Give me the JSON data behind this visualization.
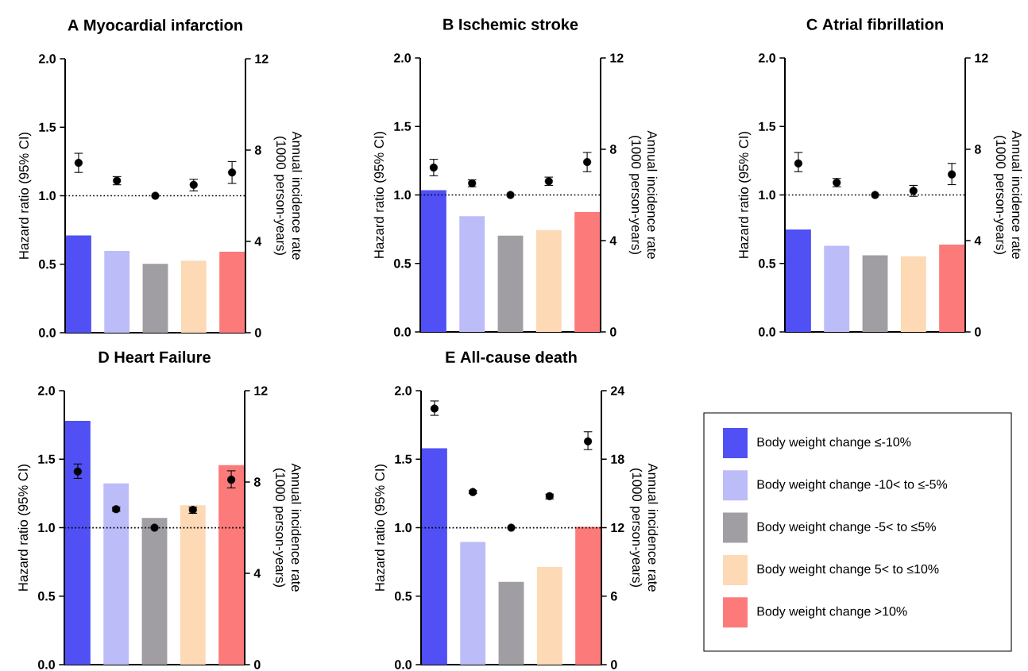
{
  "chart_data": [
    {
      "type": "bar",
      "marker": "circle",
      "title": "A Myocardial infarction",
      "ylabel": "Hazard ratio (95% CI)",
      "y2label": "Annual incidence rate (1000 person-years)",
      "categories": [
        null,
        null,
        null,
        null,
        null
      ],
      "ylim": [
        0,
        2
      ],
      "yticks": [
        {
          "value": 0,
          "label": "0.0"
        },
        {
          "value": 0.5,
          "label": "0.5"
        },
        {
          "value": 1,
          "label": "1.0"
        },
        {
          "value": 1.5,
          "label": "1.5"
        },
        {
          "value": 2,
          "label": "2.0"
        }
      ],
      "y2lim": [
        0,
        12
      ],
      "y2ticks": [
        0,
        4,
        8,
        12
      ],
      "ref_lines": [
        {
          "axis": "y",
          "value": 1,
          "line_style": "dotted"
        }
      ],
      "series": [
        {
          "type": "bar",
          "axis": "y2",
          "colors": [
            "#5050f5",
            "#bcbcf8",
            "#a19ea3",
            "#fdd9b5",
            "#fd7a7a"
          ],
          "values": [
            4.26,
            3.58,
            3.02,
            3.16,
            3.55
          ]
        },
        {
          "type": "scatter",
          "color": "#000000",
          "values": [
            1.24,
            1.11,
            1.0,
            1.08,
            1.17
          ],
          "errors": [
            [
              1.17,
              1.31
            ],
            [
              1.08,
              1.14
            ],
            null,
            [
              1.035,
              1.12
            ],
            [
              1.09,
              1.25
            ]
          ]
        }
      ]
    },
    {
      "type": "bar",
      "marker": "circle",
      "title": "B Ischemic stroke",
      "ylabel": "Hazard ratio (95% CI)",
      "y2label": "Annual incidence rate (1000 person-years)",
      "categories": [
        null,
        null,
        null,
        null,
        null
      ],
      "ylim": [
        0,
        2
      ],
      "yticks": [
        {
          "value": 0,
          "label": "0.0"
        },
        {
          "value": 0.5,
          "label": "0.5"
        },
        {
          "value": 1,
          "label": "1.0"
        },
        {
          "value": 1.5,
          "label": "1.5"
        },
        {
          "value": 2,
          "label": "2.0"
        }
      ],
      "y2lim": [
        0,
        12
      ],
      "y2ticks": [
        0,
        4,
        8,
        12
      ],
      "ref_lines": [
        {
          "axis": "y",
          "value": 1,
          "line_style": "dotted"
        }
      ],
      "series": [
        {
          "type": "bar",
          "axis": "y2",
          "colors": [
            "#5050f5",
            "#bcbcf8",
            "#a19ea3",
            "#fdd9b5",
            "#fd7a7a"
          ],
          "values": [
            6.21,
            5.07,
            4.22,
            4.46,
            5.25
          ]
        },
        {
          "type": "scatter",
          "color": "#000000",
          "values": [
            1.2,
            1.085,
            1.0,
            1.1,
            1.24
          ],
          "errors": [
            [
              1.14,
              1.26
            ],
            [
              1.06,
              1.11
            ],
            null,
            [
              1.07,
              1.13
            ],
            [
              1.17,
              1.31
            ]
          ]
        }
      ]
    },
    {
      "type": "bar",
      "marker": "circle",
      "title": "C Atrial fibrillation",
      "ylabel": "Hazard ratio (95% CI)",
      "y2label": "Annual incidence rate (1000 person-years)",
      "categories": [
        null,
        null,
        null,
        null,
        null
      ],
      "ylim": [
        0,
        2
      ],
      "yticks": [
        {
          "value": 0,
          "label": "0.0"
        },
        {
          "value": 0.5,
          "label": "0.5"
        },
        {
          "value": 1,
          "label": "1.0"
        },
        {
          "value": 1.5,
          "label": "1.5"
        },
        {
          "value": 2,
          "label": "2.0"
        }
      ],
      "y2lim": [
        0,
        12
      ],
      "y2ticks": [
        0,
        4,
        8,
        12
      ],
      "ref_lines": [
        {
          "axis": "y",
          "value": 1,
          "line_style": "dotted"
        }
      ],
      "series": [
        {
          "type": "bar",
          "axis": "y2",
          "colors": [
            "#5050f5",
            "#bcbcf8",
            "#a19ea3",
            "#fdd9b5",
            "#fd7a7a"
          ],
          "values": [
            4.49,
            3.77,
            3.36,
            3.31,
            3.83
          ]
        },
        {
          "type": "scatter",
          "color": "#000000",
          "values": [
            1.23,
            1.09,
            1.0,
            1.03,
            1.15
          ],
          "errors": [
            [
              1.17,
              1.31
            ],
            [
              1.06,
              1.12
            ],
            null,
            [
              0.99,
              1.07
            ],
            [
              1.075,
              1.23
            ]
          ]
        }
      ]
    },
    {
      "type": "bar",
      "marker": "circle",
      "title": "D Heart Failure",
      "ylabel": "Hazard ratio (95% CI)",
      "y2label": "Annual incidence rate (1000 person-years)",
      "categories": [
        null,
        null,
        null,
        null,
        null
      ],
      "ylim": [
        0,
        2
      ],
      "yticks": [
        {
          "value": 0,
          "label": "0.0"
        },
        {
          "value": 0.5,
          "label": "0.5"
        },
        {
          "value": 1,
          "label": "1.0"
        },
        {
          "value": 1.5,
          "label": "1.5"
        },
        {
          "value": 2,
          "label": "2.0"
        }
      ],
      "y2lim": [
        0,
        12
      ],
      "y2ticks": [
        0,
        4,
        8,
        12
      ],
      "ref_lines": [
        {
          "axis": "y",
          "value": 1,
          "line_style": "dotted"
        }
      ],
      "series": [
        {
          "type": "bar",
          "axis": "y2",
          "colors": [
            "#5050f5",
            "#bcbcf8",
            "#a19ea3",
            "#fdd9b5",
            "#fd7a7a"
          ],
          "values": [
            10.68,
            7.94,
            6.43,
            6.98,
            8.74
          ]
        },
        {
          "type": "scatter",
          "color": "#000000",
          "values": [
            1.41,
            1.135,
            1.0,
            1.13,
            1.35
          ],
          "errors": [
            [
              1.36,
              1.465
            ],
            [
              1.12,
              1.15
            ],
            null,
            [
              1.105,
              1.15
            ],
            [
              1.29,
              1.415
            ]
          ]
        }
      ]
    },
    {
      "type": "bar",
      "marker": "circle",
      "title": "E All-cause death",
      "ylabel": "Hazard ratio (95% CI)",
      "y2label": "Annual incidence rate (1000 person-years)",
      "categories": [
        null,
        null,
        null,
        null,
        null
      ],
      "ylim": [
        0,
        2
      ],
      "yticks": [
        {
          "value": 0,
          "label": "0.0"
        },
        {
          "value": 0.5,
          "label": "0.5"
        },
        {
          "value": 1,
          "label": "1.0"
        },
        {
          "value": 1.5,
          "label": "1.5"
        },
        {
          "value": 2,
          "label": "2.0"
        }
      ],
      "y2lim": [
        0,
        24
      ],
      "y2ticks": [
        0,
        6,
        12,
        18,
        24
      ],
      "ref_lines": [
        {
          "axis": "y",
          "value": 1,
          "line_style": "dotted"
        }
      ],
      "series": [
        {
          "type": "bar",
          "axis": "y2",
          "colors": [
            "#5050f5",
            "#bcbcf8",
            "#a19ea3",
            "#fdd9b5",
            "#fd7a7a"
          ],
          "values": [
            18.95,
            10.75,
            7.25,
            8.55,
            12.07
          ]
        },
        {
          "type": "scatter",
          "color": "#000000",
          "values": [
            1.87,
            1.26,
            1.0,
            1.23,
            1.63
          ],
          "errors": [
            [
              1.82,
              1.925
            ],
            [
              1.25,
              1.27
            ],
            null,
            [
              1.21,
              1.245
            ],
            [
              1.57,
              1.7
            ]
          ]
        }
      ]
    },
    {
      "type": "other",
      "categories": [
        "Body weight change ≤-10%",
        "Body weight change -10< to ≤-5%",
        "Body weight change -5< to ≤5%",
        "Body weight change 5< to ≤10%",
        "Body weight change >10%"
      ],
      "colors": [
        "#5050f5",
        "#bcbcf8",
        "#a19ea3",
        "#fdd9b5",
        "#fd7a7a"
      ]
    }
  ]
}
